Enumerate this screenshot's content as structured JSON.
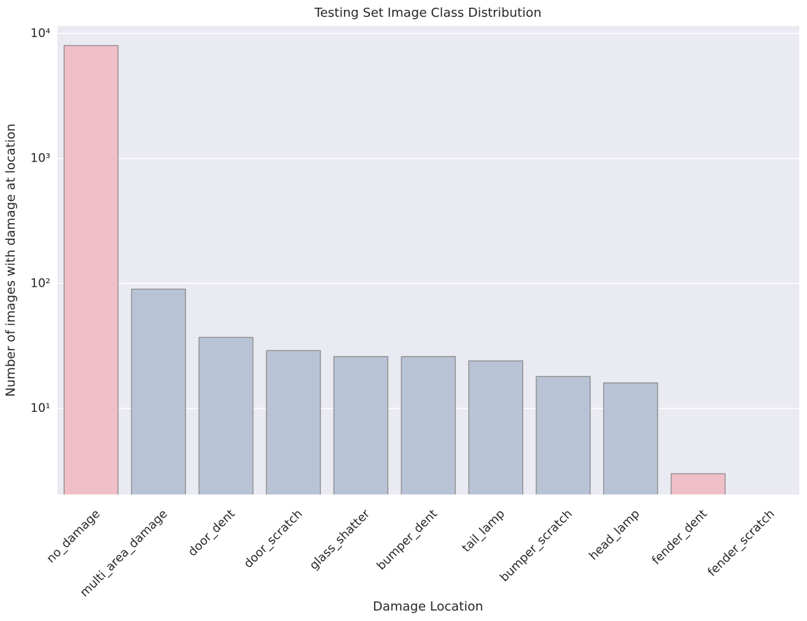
{
  "chart_data": {
    "type": "bar",
    "title": "Testing Set Image Class Distribution",
    "x_label": "Damage Location",
    "y_label": "Number of images with damage at location",
    "categories": [
      "no_damage",
      "multi_area_damage",
      "door_dent",
      "door_scratch",
      "glass_shatter",
      "bumper_dent",
      "tail_lamp",
      "bumper_scratch",
      "head_lamp",
      "fender_dent",
      "fender_scratch"
    ],
    "values": [
      8000,
      90,
      37,
      29,
      26,
      26,
      24,
      18,
      16,
      3,
      2
    ],
    "colors": [
      "#f0bfc8",
      "#b8c3d6",
      "#b8c3d6",
      "#b8c3d6",
      "#b8c3d6",
      "#b8c3d6",
      "#b8c3d6",
      "#b8c3d6",
      "#b8c3d6",
      "#f0bfc8",
      "#f0bfc8"
    ],
    "log_scale": true,
    "ylim": [
      2.05,
      11500
    ],
    "yticks": [
      {
        "value": 10,
        "label": "10¹"
      },
      {
        "value": 100,
        "label": "10²"
      },
      {
        "value": 1000,
        "label": "10³"
      },
      {
        "value": 10000,
        "label": "10⁴"
      }
    ],
    "grid": true
  }
}
